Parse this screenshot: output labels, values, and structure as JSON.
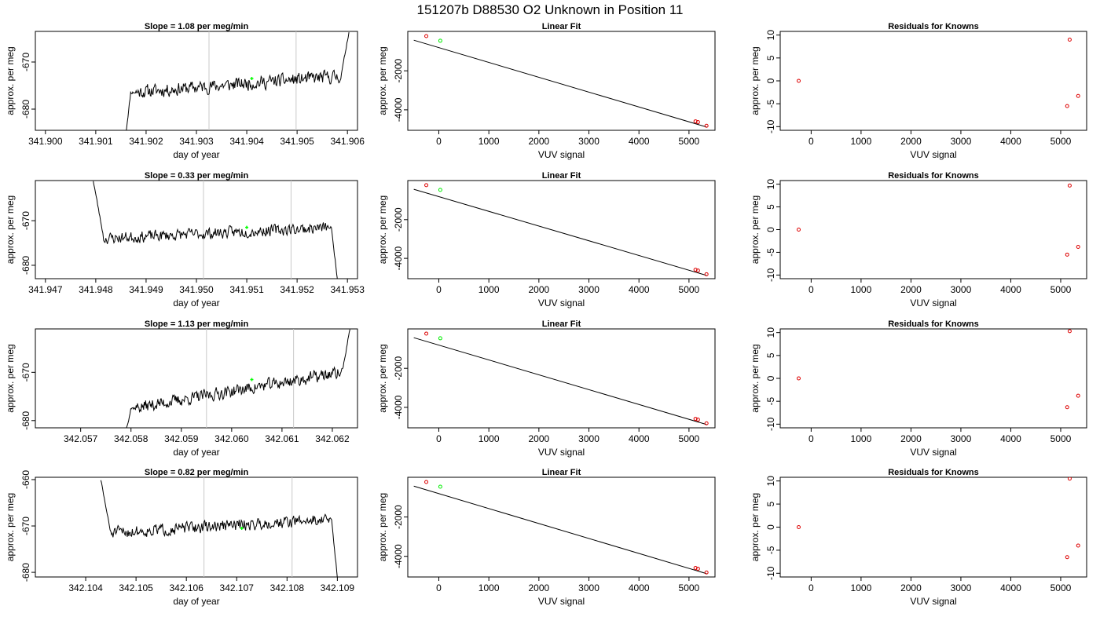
{
  "figure": {
    "title": "151207b      D88530    O2 Unknown in Position  11"
  },
  "chart_data": [
    {
      "type": "line",
      "title": "Slope =  1.08  per meg/min",
      "xlabel": "day of year",
      "ylabel": "approx. per meg",
      "xlim": [
        341.8998,
        341.9062
      ],
      "ylim": [
        -684.5,
        -663.5
      ],
      "xticks": [
        341.9,
        341.901,
        341.902,
        341.903,
        341.904,
        341.905,
        341.906
      ],
      "xtick_labels": [
        "341.900",
        "341.901",
        "341.902",
        "341.903",
        "341.904",
        "341.905",
        "341.906"
      ],
      "yticks": [
        -680,
        -670
      ],
      "ytick_labels": [
        "-680",
        "-670"
      ],
      "vlines": [
        341.90325,
        341.90498
      ],
      "signal": {
        "x_start": 341.9016,
        "x_end": 341.90603,
        "rise_start": -685,
        "rise_end": -677,
        "level_start": -676.5,
        "level_end": -673,
        "end_rise_to": -663.5,
        "noise": 1.2,
        "seed": 11
      },
      "marker": {
        "color": "#00ff00",
        "x": 341.9041,
        "y": -673.5
      }
    },
    {
      "type": "scatter",
      "title": "Linear Fit",
      "xlabel": "VUV signal",
      "ylabel": "approx. per meg",
      "xlim": [
        -620,
        5520
      ],
      "ylim": [
        -5050,
        20
      ],
      "xticks": [
        0,
        1000,
        2000,
        3000,
        4000,
        5000
      ],
      "xtick_labels": [
        "0",
        "1000",
        "2000",
        "3000",
        "4000",
        "5000"
      ],
      "yticks": [
        -4000,
        -2000
      ],
      "ytick_labels": [
        "-4000",
        "-2000"
      ],
      "line": [
        [
          -500,
          -430
        ],
        [
          5350,
          -4880
        ]
      ],
      "points_red": [
        [
          -250,
          -220
        ],
        [
          5130,
          -4590
        ],
        [
          5180,
          -4630
        ],
        [
          5350,
          -4820
        ]
      ],
      "points_green": [
        [
          30,
          -460
        ]
      ]
    },
    {
      "type": "scatter",
      "title": "Residuals for Knowns",
      "xlabel": "VUV signal",
      "ylabel": "approx. per meg",
      "xlim": [
        -620,
        5520
      ],
      "ylim": [
        -10.8,
        10.8
      ],
      "xticks": [
        0,
        1000,
        2000,
        3000,
        4000,
        5000
      ],
      "xtick_labels": [
        "0",
        "1000",
        "2000",
        "3000",
        "4000",
        "5000"
      ],
      "yticks": [
        -10,
        -5,
        0,
        5,
        10
      ],
      "ytick_labels": [
        "-10",
        "-5",
        "0",
        "5",
        "10"
      ],
      "points_red": [
        [
          -250,
          0
        ],
        [
          5130,
          -5.5
        ],
        [
          5180,
          9
        ],
        [
          5350,
          -3.3
        ]
      ]
    },
    {
      "type": "line",
      "title": "Slope =  0.33  per meg/min",
      "xlabel": "day of year",
      "ylabel": "approx. per meg",
      "xlim": [
        341.9468,
        341.9532
      ],
      "ylim": [
        -683,
        -661
      ],
      "xticks": [
        341.947,
        341.948,
        341.949,
        341.95,
        341.951,
        341.952,
        341.953
      ],
      "xtick_labels": [
        "341.947",
        "341.948",
        "341.949",
        "341.950",
        "341.951",
        "341.952",
        "341.953"
      ],
      "yticks": [
        -680,
        -670
      ],
      "ytick_labels": [
        "-680",
        "-670"
      ],
      "vlines": [
        341.95014,
        341.95188
      ],
      "signal": {
        "x_start": 341.94795,
        "x_end": 341.9528,
        "fall_from": -661,
        "fall_to": -673,
        "level_start": -674,
        "level_end": -671.5,
        "end_drop_to": -683,
        "noise": 1.1,
        "seed": 23
      },
      "marker": {
        "color": "#00ff00",
        "x": 341.951,
        "y": -671.5
      }
    },
    {
      "type": "scatter",
      "title": "Linear Fit",
      "xlabel": "VUV signal",
      "ylabel": "approx. per meg",
      "xlim": [
        -620,
        5520
      ],
      "ylim": [
        -5050,
        20
      ],
      "xticks": [
        0,
        1000,
        2000,
        3000,
        4000,
        5000
      ],
      "xtick_labels": [
        "0",
        "1000",
        "2000",
        "3000",
        "4000",
        "5000"
      ],
      "yticks": [
        -4000,
        -2000
      ],
      "ytick_labels": [
        "-4000",
        "-2000"
      ],
      "line": [
        [
          -500,
          -430
        ],
        [
          5350,
          -4880
        ]
      ],
      "points_red": [
        [
          -250,
          -220
        ],
        [
          5130,
          -4590
        ],
        [
          5180,
          -4630
        ],
        [
          5350,
          -4820
        ]
      ],
      "points_green": [
        [
          30,
          -460
        ]
      ]
    },
    {
      "type": "scatter",
      "title": "Residuals for Knowns",
      "xlabel": "VUV signal",
      "ylabel": "approx. per meg",
      "xlim": [
        -620,
        5520
      ],
      "ylim": [
        -10.8,
        10.8
      ],
      "xticks": [
        0,
        1000,
        2000,
        3000,
        4000,
        5000
      ],
      "xtick_labels": [
        "0",
        "1000",
        "2000",
        "3000",
        "4000",
        "5000"
      ],
      "yticks": [
        -10,
        -5,
        0,
        5,
        10
      ],
      "ytick_labels": [
        "-10",
        "-5",
        "0",
        "5",
        "10"
      ],
      "points_red": [
        [
          -250,
          0
        ],
        [
          5130,
          -5.5
        ],
        [
          5180,
          9.7
        ],
        [
          5350,
          -3.8
        ]
      ]
    },
    {
      "type": "line",
      "title": "Slope =  1.13  per meg/min",
      "xlabel": "day of year",
      "ylabel": "approx. per meg",
      "xlim": [
        342.0561,
        342.0625
      ],
      "ylim": [
        -681.5,
        -661
      ],
      "xticks": [
        342.057,
        342.058,
        342.059,
        342.06,
        342.061,
        342.062
      ],
      "xtick_labels": [
        "342.057",
        "342.058",
        "342.059",
        "342.060",
        "342.061",
        "342.062"
      ],
      "yticks": [
        -680,
        -670
      ],
      "ytick_labels": [
        "-680",
        "-670"
      ],
      "vlines": [
        342.0595,
        342.06123
      ],
      "signal": {
        "x_start": 342.0579,
        "x_end": 342.06235,
        "rise_start": -682,
        "rise_end": -678,
        "level_start": -677.5,
        "level_end": -670,
        "end_rise_to": -661,
        "noise": 1.1,
        "seed": 37
      },
      "marker": {
        "color": "#00ff00",
        "x": 342.0604,
        "y": -671.5
      }
    },
    {
      "type": "scatter",
      "title": "Linear Fit",
      "xlabel": "VUV signal",
      "ylabel": "approx. per meg",
      "xlim": [
        -620,
        5520
      ],
      "ylim": [
        -5050,
        20
      ],
      "xticks": [
        0,
        1000,
        2000,
        3000,
        4000,
        5000
      ],
      "xtick_labels": [
        "0",
        "1000",
        "2000",
        "3000",
        "4000",
        "5000"
      ],
      "yticks": [
        -4000,
        -2000
      ],
      "ytick_labels": [
        "-4000",
        "-2000"
      ],
      "line": [
        [
          -500,
          -430
        ],
        [
          5350,
          -4880
        ]
      ],
      "points_red": [
        [
          -250,
          -220
        ],
        [
          5130,
          -4590
        ],
        [
          5180,
          -4630
        ],
        [
          5350,
          -4820
        ]
      ],
      "points_green": [
        [
          30,
          -460
        ]
      ]
    },
    {
      "type": "scatter",
      "title": "Residuals for Knowns",
      "xlabel": "VUV signal",
      "ylabel": "approx. per meg",
      "xlim": [
        -620,
        5520
      ],
      "ylim": [
        -10.8,
        10.8
      ],
      "xticks": [
        0,
        1000,
        2000,
        3000,
        4000,
        5000
      ],
      "xtick_labels": [
        "0",
        "1000",
        "2000",
        "3000",
        "4000",
        "5000"
      ],
      "yticks": [
        -10,
        -5,
        0,
        5,
        10
      ],
      "ytick_labels": [
        "-10",
        "-5",
        "0",
        "5",
        "10"
      ],
      "points_red": [
        [
          -250,
          0
        ],
        [
          5130,
          -6.3
        ],
        [
          5180,
          10.3
        ],
        [
          5350,
          -3.8
        ]
      ]
    },
    {
      "type": "line",
      "title": "Slope =  0.82  per meg/min",
      "xlabel": "day of year",
      "ylabel": "approx. per meg",
      "xlim": [
        342.103,
        342.1094
      ],
      "ylim": [
        -681,
        -659.5
      ],
      "xticks": [
        342.104,
        342.105,
        342.106,
        342.107,
        342.108,
        342.109
      ],
      "xtick_labels": [
        "342.104",
        "342.105",
        "342.106",
        "342.107",
        "342.108",
        "342.109"
      ],
      "yticks": [
        -680,
        -670,
        -660
      ],
      "ytick_labels": [
        "-680",
        "-670",
        "-660"
      ],
      "vlines": [
        342.10635,
        342.1081
      ],
      "signal": {
        "x_start": 342.1043,
        "x_end": 342.109,
        "fall_from": -660,
        "fall_to": -671,
        "level_start": -671.5,
        "level_end": -668.5,
        "end_drop_to": -681,
        "noise": 1.1,
        "seed": 51
      },
      "marker": {
        "color": "#00ff00",
        "x": 342.1071,
        "y": -670.5
      }
    },
    {
      "type": "scatter",
      "title": "Linear Fit",
      "xlabel": "VUV signal",
      "ylabel": "approx. per meg",
      "xlim": [
        -620,
        5520
      ],
      "ylim": [
        -5050,
        20
      ],
      "xticks": [
        0,
        1000,
        2000,
        3000,
        4000,
        5000
      ],
      "xtick_labels": [
        "0",
        "1000",
        "2000",
        "3000",
        "4000",
        "5000"
      ],
      "yticks": [
        -4000,
        -2000
      ],
      "ytick_labels": [
        "-4000",
        "-2000"
      ],
      "line": [
        [
          -500,
          -430
        ],
        [
          5350,
          -4880
        ]
      ],
      "points_red": [
        [
          -250,
          -220
        ],
        [
          5130,
          -4590
        ],
        [
          5180,
          -4630
        ],
        [
          5350,
          -4820
        ]
      ],
      "points_green": [
        [
          30,
          -460
        ]
      ]
    },
    {
      "type": "scatter",
      "title": "Residuals for Knowns",
      "xlabel": "VUV signal",
      "ylabel": "approx. per meg",
      "xlim": [
        -620,
        5520
      ],
      "ylim": [
        -10.8,
        10.8
      ],
      "xticks": [
        0,
        1000,
        2000,
        3000,
        4000,
        5000
      ],
      "xtick_labels": [
        "0",
        "1000",
        "2000",
        "3000",
        "4000",
        "5000"
      ],
      "yticks": [
        -10,
        -5,
        0,
        5,
        10
      ],
      "ytick_labels": [
        "-10",
        "-5",
        "0",
        "5",
        "10"
      ],
      "points_red": [
        [
          -250,
          0
        ],
        [
          5130,
          -6.5
        ],
        [
          5180,
          10.5
        ],
        [
          5350,
          -4
        ]
      ]
    }
  ],
  "colors": {
    "data_line": "#000000",
    "frame": "#000000",
    "vline": "#c8c8c8",
    "point_red": "#dd0000",
    "point_green": "#00ee00"
  }
}
